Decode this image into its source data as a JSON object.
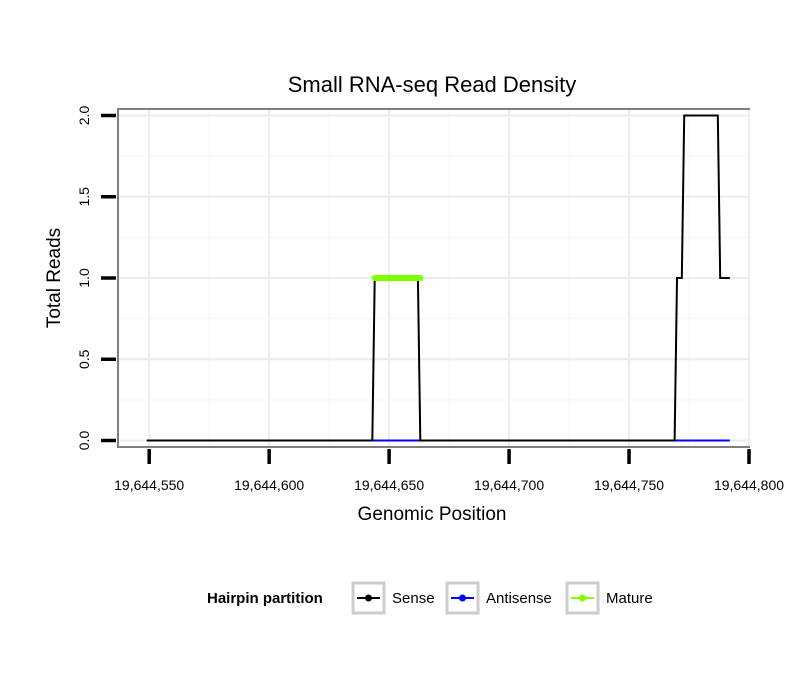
{
  "chart_data": {
    "type": "line",
    "title": "Small RNA-seq Read Density",
    "xlabel": "Genomic Position",
    "ylabel": "Total Reads",
    "xlim": [
      19644537,
      19644800
    ],
    "ylim": [
      -0.04,
      2.04
    ],
    "x_ticks": [
      19644550,
      19644600,
      19644650,
      19644700,
      19644750,
      19644800
    ],
    "x_tick_labels": [
      "19,644,550",
      "19,644,600",
      "19,644,650",
      "19,644,700",
      "19,644,750",
      "19,644,800"
    ],
    "y_ticks": [
      0,
      0.5,
      1,
      1.5,
      2
    ],
    "y_tick_labels": [
      "0.0",
      "0.5",
      "1.0",
      "1.5",
      "2.0"
    ],
    "grid": true,
    "legend": {
      "title": "Hairpin partition",
      "position": "bottom",
      "entries": [
        {
          "name": "Sense",
          "color": "#000000"
        },
        {
          "name": "Antisense",
          "color": "#0000ff"
        },
        {
          "name": "Mature",
          "color": "#7fff00"
        }
      ]
    },
    "series": [
      {
        "name": "Sense",
        "color": "#000000",
        "x": [
          19644549,
          19644643,
          19644644,
          19644662,
          19644663,
          19644769,
          19644770,
          19644772,
          19644773,
          19644787,
          19644788,
          19644792
        ],
        "y": [
          0,
          0,
          1,
          1,
          0,
          0,
          1,
          1,
          2,
          2,
          1,
          1
        ]
      },
      {
        "name": "Antisense",
        "color": "#0000ff",
        "x": [
          19644549,
          19644792
        ],
        "y": [
          0,
          0
        ]
      },
      {
        "name": "Mature",
        "color": "#7fff00",
        "x": [
          19644644,
          19644663
        ],
        "y": [
          1,
          1
        ]
      }
    ]
  }
}
